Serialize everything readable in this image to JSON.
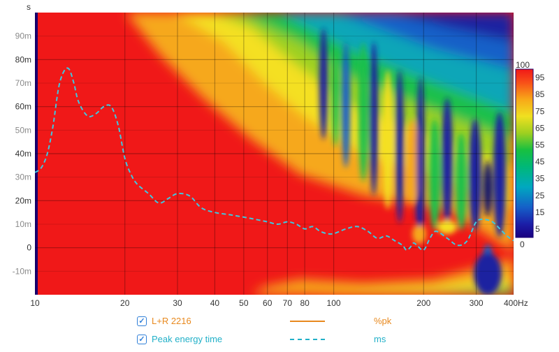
{
  "chart_data": {
    "type": "spectrogram",
    "title": "",
    "y_unit": "s",
    "x_unit": "Hz",
    "x_scale": "log",
    "xlim": [
      10,
      400
    ],
    "ylim": [
      -0.02,
      0.1
    ],
    "x_major_ticks": [
      "10",
      "20",
      "30",
      "40",
      "50",
      "60",
      "70",
      "80",
      "100",
      "200",
      "300",
      "400Hz"
    ],
    "x_tick_values": [
      10,
      20,
      30,
      40,
      50,
      60,
      70,
      80,
      100,
      200,
      300,
      400
    ],
    "y_ticks": [
      {
        "label": "90m",
        "value": 0.09,
        "major": false
      },
      {
        "label": "80m",
        "value": 0.08,
        "major": true
      },
      {
        "label": "70m",
        "value": 0.07,
        "major": false
      },
      {
        "label": "60m",
        "value": 0.06,
        "major": true
      },
      {
        "label": "50m",
        "value": 0.05,
        "major": false
      },
      {
        "label": "40m",
        "value": 0.04,
        "major": true
      },
      {
        "label": "30m",
        "value": 0.03,
        "major": false
      },
      {
        "label": "20m",
        "value": 0.02,
        "major": true
      },
      {
        "label": "10m",
        "value": 0.01,
        "major": false
      },
      {
        "label": "0",
        "value": 0.0,
        "major": true
      },
      {
        "label": "-10m",
        "value": -0.01,
        "major": false
      }
    ],
    "colorbar": {
      "label_top": "100",
      "label_bottom": "0",
      "ticks": [
        "95",
        "85",
        "75",
        "65",
        "55",
        "45",
        "35",
        "25",
        "15",
        "5"
      ],
      "tick_values": [
        95,
        85,
        75,
        65,
        55,
        45,
        35,
        25,
        15,
        5
      ],
      "unit": "%pk"
    },
    "series": [
      {
        "name": "Peak energy time",
        "unit": "ms",
        "color": "#3ec8e0",
        "style": "dashed",
        "x": [
          10,
          10.5,
          11,
          11.5,
          12,
          12.5,
          13,
          13.5,
          14,
          15,
          16,
          17,
          18,
          19,
          20,
          21,
          22,
          24,
          26,
          28,
          30,
          33,
          36,
          40,
          45,
          50,
          55,
          60,
          65,
          70,
          75,
          80,
          85,
          90,
          95,
          100,
          110,
          120,
          130,
          140,
          150,
          160,
          170,
          175,
          180,
          185,
          190,
          200,
          210,
          220,
          240,
          260,
          280,
          300,
          320,
          340,
          360,
          380,
          400
        ],
        "y": [
          32,
          34,
          40,
          52,
          68,
          75,
          76,
          70,
          62,
          56,
          57,
          60,
          60,
          52,
          38,
          31,
          27,
          23,
          19,
          21,
          23,
          22,
          17,
          15,
          14,
          13,
          12,
          11,
          10,
          11,
          10,
          8,
          9,
          7,
          6,
          6,
          8,
          9,
          7,
          4,
          5,
          3,
          1,
          -1,
          0,
          2,
          1,
          -1,
          4,
          7,
          4,
          1,
          3,
          11,
          12,
          11,
          8,
          5,
          3
        ]
      }
    ],
    "heatmap_description": "time-frequency energy in %pk"
  },
  "legend": [
    {
      "checked_mark": "✓",
      "label": "L+R 2216",
      "unit": "%pk",
      "color": "#e8891e"
    },
    {
      "checked_mark": "✓",
      "label": "Peak energy time",
      "unit": "ms",
      "color": "#21b0c8"
    }
  ],
  "colors": {
    "legend_orange": "#e8891e",
    "legend_cyan": "#21b0c8",
    "curve": "#3ec8e0",
    "checkbox": "#2f7fd8"
  }
}
